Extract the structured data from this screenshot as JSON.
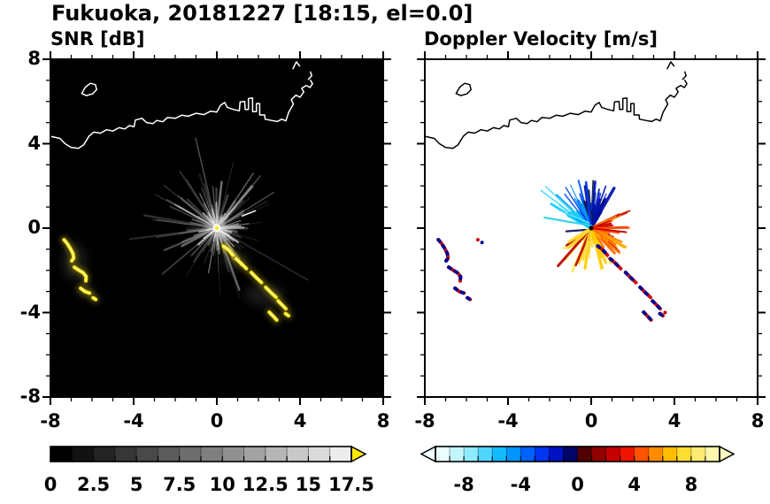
{
  "chart_data": {
    "type": "heatmap",
    "title": "Fukuoka, 20181227 [18:15, el=0.0]",
    "axis": {
      "min": -8,
      "max": 8,
      "minor_step": 1,
      "major": [
        -8,
        -4,
        0,
        4,
        8
      ],
      "labels": [
        "-8",
        "-4",
        "0",
        "4",
        "8"
      ]
    },
    "radar_center": [
      0,
      0
    ],
    "seed": 11,
    "panels": [
      {
        "id": "snr",
        "title": "SNR [dB]",
        "background": "#000000",
        "coast_color": "#ffffff",
        "colorbar": {
          "min": 0,
          "max": 17.5,
          "segments": 14,
          "tick_step": 1.25,
          "label_values": [
            0,
            2.5,
            5,
            7.5,
            10,
            12.5,
            15,
            17.5
          ],
          "labels": [
            "0",
            "2.5",
            "5",
            "7.5",
            "10",
            "12.5",
            "15",
            "17.5"
          ],
          "start_color": "#000000",
          "end_color": "#ececec",
          "arrow_color": "#ffe800"
        }
      },
      {
        "id": "vel",
        "title": "Doppler Velocity [m/s]",
        "background": "#ffffff",
        "coast_color": "#000000",
        "colorbar": {
          "min": -10,
          "max": 10,
          "tick_step": 1,
          "label_values": [
            -8,
            -4,
            0,
            4,
            8
          ],
          "labels": [
            "-8",
            "-4",
            "0",
            "4",
            "8"
          ],
          "segment_colors": [
            "#ecffff",
            "#c2f6ff",
            "#8fe9ff",
            "#50d5ff",
            "#14bcff",
            "#0094ff",
            "#0062ff",
            "#0033f2",
            "#0012c4",
            "#000566",
            "#500000",
            "#900000",
            "#c40000",
            "#ee1400",
            "#ff5200",
            "#ff8a00",
            "#ffbc00",
            "#ffdc32",
            "#ffeb72",
            "#fff7ac"
          ],
          "left_arrow_color": "#f2ffff",
          "right_arrow_color": "#fffbc0"
        }
      }
    ],
    "geography": {
      "coastline": [
        [
          -8,
          4.35
        ],
        [
          -7.55,
          4.25
        ],
        [
          -7.3,
          4.0
        ],
        [
          -7.0,
          3.82
        ],
        [
          -6.65,
          3.78
        ],
        [
          -6.4,
          3.95
        ],
        [
          -6.15,
          4.35
        ],
        [
          -5.92,
          4.55
        ],
        [
          -5.6,
          4.5
        ],
        [
          -5.3,
          4.66
        ],
        [
          -5.0,
          4.6
        ],
        [
          -4.7,
          4.76
        ],
        [
          -4.42,
          4.7
        ],
        [
          -4.2,
          4.86
        ],
        [
          -3.98,
          4.8
        ],
        [
          -3.92,
          5.12
        ],
        [
          -3.6,
          5.2
        ],
        [
          -3.38,
          5.0
        ],
        [
          -3.08,
          4.95
        ],
        [
          -2.88,
          5.1
        ],
        [
          -2.6,
          5.04
        ],
        [
          -2.38,
          5.24
        ],
        [
          -2.0,
          5.2
        ],
        [
          -1.68,
          5.35
        ],
        [
          -1.38,
          5.3
        ],
        [
          -1.0,
          5.44
        ],
        [
          -0.62,
          5.38
        ],
        [
          -0.3,
          5.54
        ],
        [
          0.0,
          5.5
        ],
        [
          0.18,
          5.82
        ],
        [
          0.38,
          5.95
        ],
        [
          0.5,
          5.72
        ],
        [
          0.8,
          5.62
        ],
        [
          1.08,
          5.56
        ],
        [
          1.12,
          5.98
        ],
        [
          1.34,
          6.0
        ],
        [
          1.36,
          5.62
        ],
        [
          1.52,
          5.62
        ],
        [
          1.52,
          6.14
        ],
        [
          1.72,
          6.16
        ],
        [
          1.72,
          5.52
        ],
        [
          1.9,
          5.52
        ],
        [
          1.9,
          5.9
        ],
        [
          2.06,
          5.9
        ],
        [
          2.06,
          5.36
        ],
        [
          2.3,
          5.36
        ],
        [
          2.32,
          5.16
        ],
        [
          2.62,
          5.1
        ],
        [
          2.9,
          5.05
        ],
        [
          3.12,
          5.16
        ],
        [
          3.32,
          5.08
        ],
        [
          3.46,
          5.5
        ],
        [
          3.68,
          5.88
        ],
        [
          3.58,
          6.08
        ],
        [
          3.8,
          6.3
        ],
        [
          4.0,
          6.2
        ],
        [
          4.18,
          6.45
        ],
        [
          4.08,
          6.62
        ],
        [
          4.3,
          6.76
        ],
        [
          4.48,
          6.66
        ],
        [
          4.6,
          6.84
        ],
        [
          4.5,
          7.0
        ]
      ],
      "island": [
        [
          -6.5,
          6.38
        ],
        [
          -6.32,
          6.68
        ],
        [
          -6.08,
          6.86
        ],
        [
          -5.84,
          6.8
        ],
        [
          -5.78,
          6.56
        ],
        [
          -5.98,
          6.36
        ],
        [
          -6.28,
          6.28
        ]
      ],
      "top_marks": [
        [
          [
            3.66,
            7.55
          ],
          [
            3.82,
            7.88
          ],
          [
            3.98,
            7.68
          ]
        ],
        [
          [
            4.4,
            7.05
          ],
          [
            4.56,
            7.22
          ],
          [
            4.5,
            7.4
          ]
        ]
      ]
    },
    "features": {
      "snr_color": "#ffe800",
      "vel_color": "#cc0000",
      "vel_speckle": "#000099",
      "west_arcs": [
        [
          [
            -7.35,
            -0.55
          ],
          [
            -7.2,
            -0.72
          ],
          [
            -7.05,
            -0.95
          ],
          [
            -6.92,
            -1.2
          ],
          [
            -6.88,
            -1.42
          ],
          [
            -6.98,
            -1.55
          ]
        ],
        [
          [
            -6.85,
            -1.85
          ],
          [
            -6.62,
            -2.0
          ],
          [
            -6.42,
            -2.12
          ],
          [
            -6.28,
            -2.3
          ],
          [
            -6.3,
            -2.5
          ]
        ],
        [
          [
            -6.55,
            -2.85
          ],
          [
            -6.35,
            -3.0
          ],
          [
            -6.12,
            -3.08
          ]
        ],
        [
          [
            -5.95,
            -3.3
          ],
          [
            -5.82,
            -3.38
          ]
        ]
      ],
      "se_chain": [
        [
          [
            0.32,
            -0.85
          ],
          [
            0.55,
            -1.02
          ],
          [
            0.78,
            -1.28
          ]
        ],
        [
          [
            0.92,
            -1.45
          ],
          [
            1.18,
            -1.68
          ],
          [
            1.42,
            -1.92
          ]
        ],
        [
          [
            1.65,
            -2.1
          ],
          [
            1.9,
            -2.35
          ],
          [
            2.15,
            -2.58
          ]
        ],
        [
          [
            2.35,
            -2.8
          ],
          [
            2.6,
            -3.05
          ],
          [
            2.85,
            -3.28
          ]
        ],
        [
          [
            2.95,
            -3.45
          ],
          [
            3.15,
            -3.65
          ],
          [
            3.32,
            -3.82
          ]
        ],
        [
          [
            2.52,
            -3.98
          ],
          [
            2.72,
            -4.18
          ],
          [
            2.88,
            -4.35
          ]
        ],
        [
          [
            3.3,
            -4.05
          ],
          [
            3.45,
            -4.15
          ]
        ]
      ],
      "dash": [
        [
          1.22,
          0.58
        ],
        [
          1.85,
          0.82
        ]
      ],
      "vel_specks": [
        [
          -5.45,
          -0.55,
          "#cc0000"
        ],
        [
          -5.25,
          -0.68,
          "#000099"
        ],
        [
          3.55,
          -4.0,
          "#cc0000"
        ]
      ]
    }
  }
}
